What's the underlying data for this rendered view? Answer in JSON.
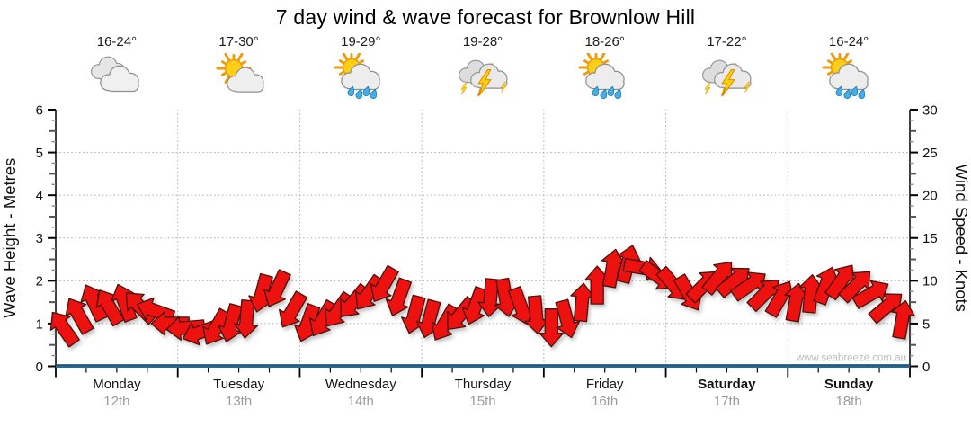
{
  "title": "7 day wind & wave forecast for Brownlow Hill",
  "watermark": "www.seabreeze.com.au",
  "days": [
    {
      "name": "Monday",
      "date": "12th",
      "temp": "16-24°",
      "icon": "cloudy",
      "bold": false
    },
    {
      "name": "Tuesday",
      "date": "13th",
      "temp": "17-30°",
      "icon": "partly-cloudy",
      "bold": false
    },
    {
      "name": "Wednesday",
      "date": "14th",
      "temp": "19-29°",
      "icon": "sun-showers",
      "bold": false
    },
    {
      "name": "Thursday",
      "date": "15th",
      "temp": "19-28°",
      "icon": "thunderstorm",
      "bold": false
    },
    {
      "name": "Friday",
      "date": "16th",
      "temp": "18-26°",
      "icon": "sun-showers",
      "bold": false
    },
    {
      "name": "Saturday",
      "date": "17th",
      "temp": "17-22°",
      "icon": "thunderstorm",
      "bold": true
    },
    {
      "name": "Sunday",
      "date": "18th",
      "temp": "16-24°",
      "icon": "sun-showers",
      "bold": true
    }
  ],
  "chart_data": {
    "type": "scatter",
    "title": "7 day wind & wave forecast for Brownlow Hill",
    "categories": [
      "Monday",
      "Tuesday",
      "Wednesday",
      "Thursday",
      "Friday",
      "Saturday",
      "Sunday"
    ],
    "left_axis": {
      "label": "Wave Height - Metres",
      "min": 0,
      "max": 6,
      "major_ticks": [
        0,
        1,
        2,
        3,
        4,
        5,
        6
      ],
      "minor_step": 0.25
    },
    "right_axis": {
      "label": "Wind Speed - Knots",
      "min": 0,
      "max": 30,
      "major_ticks": [
        0,
        5,
        10,
        15,
        20,
        25,
        30
      ],
      "minor_step": 1.25
    },
    "grid": {
      "horizontal_at_metres": [
        1,
        2,
        3,
        4,
        5
      ],
      "vertical_at_day_boundaries": true,
      "style": "dotted"
    },
    "wind_speed_knots_3hourly": [
      4.5,
      6,
      7.5,
      7,
      7.5,
      7,
      6.5,
      5,
      4.5,
      4,
      4.5,
      5,
      5.5,
      8.5,
      9,
      6.5,
      5,
      5.5,
      6.5,
      7.5,
      8.5,
      9.5,
      8,
      6,
      5.5,
      5,
      6,
      7,
      8,
      8,
      7,
      6,
      4.5,
      5.5,
      7.5,
      9.5,
      11.5,
      12,
      11.5,
      10.5,
      9.5,
      8.5,
      9.5,
      10.5,
      10,
      9.5,
      8.5,
      8,
      7.5,
      8.5,
      9.5,
      10,
      9.5,
      8.5,
      7,
      5.5
    ],
    "wind_direction_deg_3hourly_0up_cw": [
      -35,
      -30,
      -25,
      -30,
      -20,
      -45,
      -70,
      -90,
      -95,
      -110,
      -150,
      195,
      185,
      195,
      205,
      210,
      200,
      210,
      215,
      220,
      215,
      210,
      200,
      195,
      195,
      210,
      220,
      200,
      185,
      170,
      160,
      175,
      180,
      165,
      5,
      0,
      10,
      15,
      100,
      125,
      140,
      150,
      45,
      40,
      50,
      55,
      45,
      30,
      10,
      5,
      20,
      35,
      45,
      60,
      50,
      10
    ],
    "wave_height_metres": {
      "constant": 0
    },
    "colors": {
      "wind_arrow_fill": "#ED1110",
      "wind_arrow_outline": "#4A120C",
      "wave_line": "#226A99",
      "wave_line_edge": "#123C58",
      "grid": "#ABABAB",
      "axis": "#000000",
      "date_text": "#9A9A9A",
      "watermark_text": "#BDBDBD"
    }
  }
}
